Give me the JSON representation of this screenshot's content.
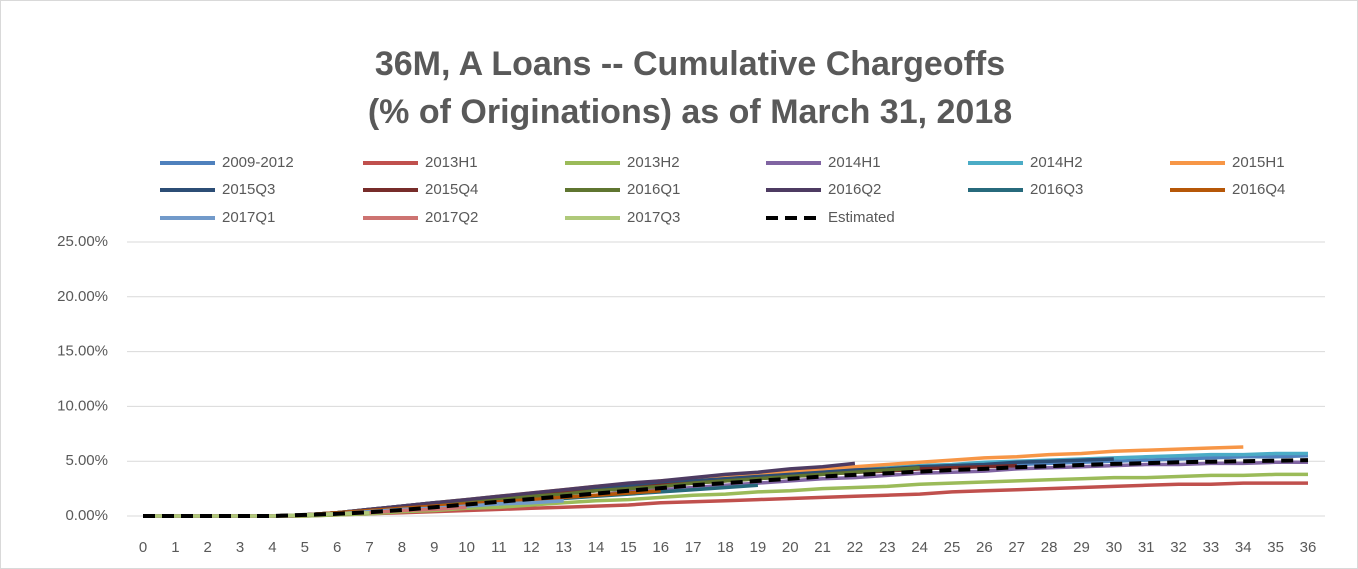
{
  "chart_data": {
    "type": "line",
    "title": "36M, A Loans -- Cumulative Chargeoffs",
    "subtitle": "(% of Originations) as of March 31, 2018",
    "x": [
      0,
      1,
      2,
      3,
      4,
      5,
      6,
      7,
      8,
      9,
      10,
      11,
      12,
      13,
      14,
      15,
      16,
      17,
      18,
      19,
      20,
      21,
      22,
      23,
      24,
      25,
      26,
      27,
      28,
      29,
      30,
      31,
      32,
      33,
      34,
      35,
      36
    ],
    "xlim": [
      0,
      36
    ],
    "ylim": [
      0,
      25
    ],
    "yticks": [
      {
        "value": 0,
        "label": "0.00%"
      },
      {
        "value": 5,
        "label": "5.00%"
      },
      {
        "value": 10,
        "label": "10.00%"
      },
      {
        "value": 15,
        "label": "15.00%"
      },
      {
        "value": 20,
        "label": "20.00%"
      },
      {
        "value": 25,
        "label": "25.00%"
      }
    ],
    "grid": true,
    "legend": "top",
    "series": [
      {
        "name": "2009-2012",
        "color": "#4f81bd",
        "values": [
          0,
          0,
          0,
          0,
          0,
          0.1,
          0.3,
          0.6,
          0.9,
          1.2,
          1.4,
          1.7,
          1.9,
          2.2,
          2.4,
          2.6,
          2.9,
          3.1,
          3.3,
          3.5,
          3.7,
          3.9,
          4.0,
          4.2,
          4.3,
          4.5,
          4.6,
          4.7,
          4.8,
          4.9,
          5.0,
          5.1,
          5.2,
          5.3,
          5.4,
          5.4,
          5.5
        ]
      },
      {
        "name": "2013H1",
        "color": "#c0504d",
        "values": [
          0,
          0,
          0,
          0,
          0,
          0,
          0.1,
          0.2,
          0.3,
          0.4,
          0.5,
          0.6,
          0.7,
          0.8,
          0.9,
          1.0,
          1.2,
          1.3,
          1.4,
          1.5,
          1.6,
          1.7,
          1.8,
          1.9,
          2.0,
          2.2,
          2.3,
          2.4,
          2.5,
          2.6,
          2.7,
          2.8,
          2.9,
          2.9,
          3.0,
          3.0,
          3.0
        ]
      },
      {
        "name": "2013H2",
        "color": "#9bbb59",
        "values": [
          0,
          0,
          0,
          0,
          0,
          0,
          0.1,
          0.2,
          0.4,
          0.5,
          0.7,
          0.8,
          1.0,
          1.2,
          1.4,
          1.5,
          1.7,
          1.9,
          2.0,
          2.2,
          2.3,
          2.5,
          2.6,
          2.7,
          2.9,
          3.0,
          3.1,
          3.2,
          3.3,
          3.4,
          3.5,
          3.5,
          3.6,
          3.7,
          3.7,
          3.8,
          3.8
        ]
      },
      {
        "name": "2014H1",
        "color": "#8064a2",
        "values": [
          0,
          0,
          0,
          0,
          0,
          0.1,
          0.2,
          0.4,
          0.6,
          0.8,
          1.0,
          1.2,
          1.5,
          1.7,
          1.9,
          2.2,
          2.4,
          2.6,
          2.8,
          3.0,
          3.2,
          3.4,
          3.5,
          3.7,
          3.9,
          4.0,
          4.1,
          4.3,
          4.4,
          4.5,
          4.6,
          4.7,
          4.7,
          4.8,
          4.8,
          4.9,
          4.9
        ]
      },
      {
        "name": "2014H2",
        "color": "#4bacc6",
        "values": [
          0,
          0,
          0,
          0,
          0,
          0.1,
          0.3,
          0.6,
          0.9,
          1.2,
          1.5,
          1.8,
          2.0,
          2.3,
          2.5,
          2.8,
          3.0,
          3.2,
          3.5,
          3.7,
          3.9,
          4.1,
          4.2,
          4.4,
          4.6,
          4.7,
          4.9,
          5.0,
          5.1,
          5.2,
          5.3,
          5.4,
          5.5,
          5.6,
          5.6,
          5.7,
          5.7
        ]
      },
      {
        "name": "2015H1",
        "color": "#f79646",
        "values": [
          0,
          0,
          0,
          0,
          0,
          0.1,
          0.3,
          0.6,
          0.9,
          1.2,
          1.5,
          1.8,
          2.1,
          2.4,
          2.7,
          2.9,
          3.2,
          3.4,
          3.7,
          3.9,
          4.1,
          4.3,
          4.5,
          4.7,
          4.9,
          5.1,
          5.3,
          5.4,
          5.6,
          5.7,
          5.9,
          6.0,
          6.1,
          6.2,
          6.3,
          null,
          null
        ]
      },
      {
        "name": "2015Q3",
        "color": "#2c4d75",
        "values": [
          0,
          0,
          0,
          0,
          0,
          0.1,
          0.3,
          0.6,
          0.9,
          1.2,
          1.4,
          1.7,
          2.0,
          2.2,
          2.5,
          2.7,
          3.0,
          3.2,
          3.4,
          3.6,
          3.8,
          4.0,
          4.2,
          4.3,
          4.5,
          4.6,
          4.7,
          4.9,
          5.0,
          5.1,
          5.2,
          null,
          null,
          null,
          null,
          null,
          null
        ]
      },
      {
        "name": "2015Q4",
        "color": "#772c2a",
        "values": [
          0,
          0,
          0,
          0,
          0,
          0.1,
          0.3,
          0.5,
          0.8,
          1.1,
          1.3,
          1.6,
          1.8,
          2.1,
          2.3,
          2.5,
          2.8,
          3.0,
          3.2,
          3.4,
          3.6,
          3.8,
          4.0,
          4.1,
          4.3,
          4.4,
          4.5,
          4.6,
          null,
          null,
          null,
          null,
          null,
          null,
          null,
          null,
          null
        ]
      },
      {
        "name": "2016Q1",
        "color": "#5f7530",
        "values": [
          0,
          0,
          0,
          0,
          0,
          0.1,
          0.3,
          0.5,
          0.8,
          1.0,
          1.3,
          1.5,
          1.8,
          2.0,
          2.3,
          2.5,
          2.7,
          3.0,
          3.2,
          3.4,
          3.6,
          3.8,
          4.0,
          4.2,
          4.4,
          null,
          null,
          null,
          null,
          null,
          null,
          null,
          null,
          null,
          null,
          null,
          null
        ]
      },
      {
        "name": "2016Q2",
        "color": "#4d3b62",
        "values": [
          0,
          0,
          0,
          0,
          0,
          0.1,
          0.3,
          0.6,
          0.9,
          1.2,
          1.5,
          1.8,
          2.1,
          2.4,
          2.7,
          3.0,
          3.2,
          3.5,
          3.8,
          4.0,
          4.3,
          4.5,
          4.8,
          null,
          null,
          null,
          null,
          null,
          null,
          null,
          null,
          null,
          null,
          null,
          null,
          null,
          null
        ]
      },
      {
        "name": "2016Q3",
        "color": "#276a7c",
        "values": [
          0,
          0,
          0,
          0,
          0,
          0.1,
          0.2,
          0.4,
          0.6,
          0.8,
          1.0,
          1.2,
          1.4,
          1.6,
          1.8,
          2.0,
          2.2,
          2.4,
          2.6,
          2.8,
          null,
          null,
          null,
          null,
          null,
          null,
          null,
          null,
          null,
          null,
          null,
          null,
          null,
          null,
          null,
          null,
          null
        ]
      },
      {
        "name": "2016Q4",
        "color": "#b65708",
        "values": [
          0,
          0,
          0,
          0,
          0,
          0.1,
          0.3,
          0.5,
          0.7,
          0.9,
          1.1,
          1.3,
          1.5,
          1.7,
          1.9,
          2.1,
          2.3,
          null,
          null,
          null,
          null,
          null,
          null,
          null,
          null,
          null,
          null,
          null,
          null,
          null,
          null,
          null,
          null,
          null,
          null,
          null,
          null
        ]
      },
      {
        "name": "2017Q1",
        "color": "#729aca",
        "values": [
          0,
          0,
          0,
          0,
          0,
          0.1,
          0.2,
          0.4,
          0.6,
          0.7,
          0.9,
          1.1,
          1.2,
          1.4,
          null,
          null,
          null,
          null,
          null,
          null,
          null,
          null,
          null,
          null,
          null,
          null,
          null,
          null,
          null,
          null,
          null,
          null,
          null,
          null,
          null,
          null,
          null
        ]
      },
      {
        "name": "2017Q2",
        "color": "#cd7371",
        "values": [
          0,
          0,
          0,
          0,
          0,
          0.1,
          0.2,
          0.3,
          0.5,
          0.6,
          0.8,
          null,
          null,
          null,
          null,
          null,
          null,
          null,
          null,
          null,
          null,
          null,
          null,
          null,
          null,
          null,
          null,
          null,
          null,
          null,
          null,
          null,
          null,
          null,
          null,
          null,
          null
        ]
      },
      {
        "name": "2017Q3",
        "color": "#afc97a",
        "values": [
          0,
          0,
          0,
          0,
          0,
          0.1,
          0.2,
          0.3,
          null,
          null,
          null,
          null,
          null,
          null,
          null,
          null,
          null,
          null,
          null,
          null,
          null,
          null,
          null,
          null,
          null,
          null,
          null,
          null,
          null,
          null,
          null,
          null,
          null,
          null,
          null,
          null,
          null
        ]
      },
      {
        "name": "Estimated",
        "color": "#000000",
        "style": "dashed",
        "values": [
          0,
          0,
          0,
          0,
          0,
          0.1,
          0.2,
          0.35,
          0.55,
          0.8,
          1.05,
          1.3,
          1.55,
          1.8,
          2.05,
          2.3,
          2.55,
          2.8,
          3.0,
          3.2,
          3.4,
          3.6,
          3.75,
          3.9,
          4.05,
          4.2,
          4.3,
          4.45,
          4.55,
          4.65,
          4.75,
          4.82,
          4.9,
          4.95,
          5.0,
          5.05,
          5.1
        ]
      }
    ]
  }
}
